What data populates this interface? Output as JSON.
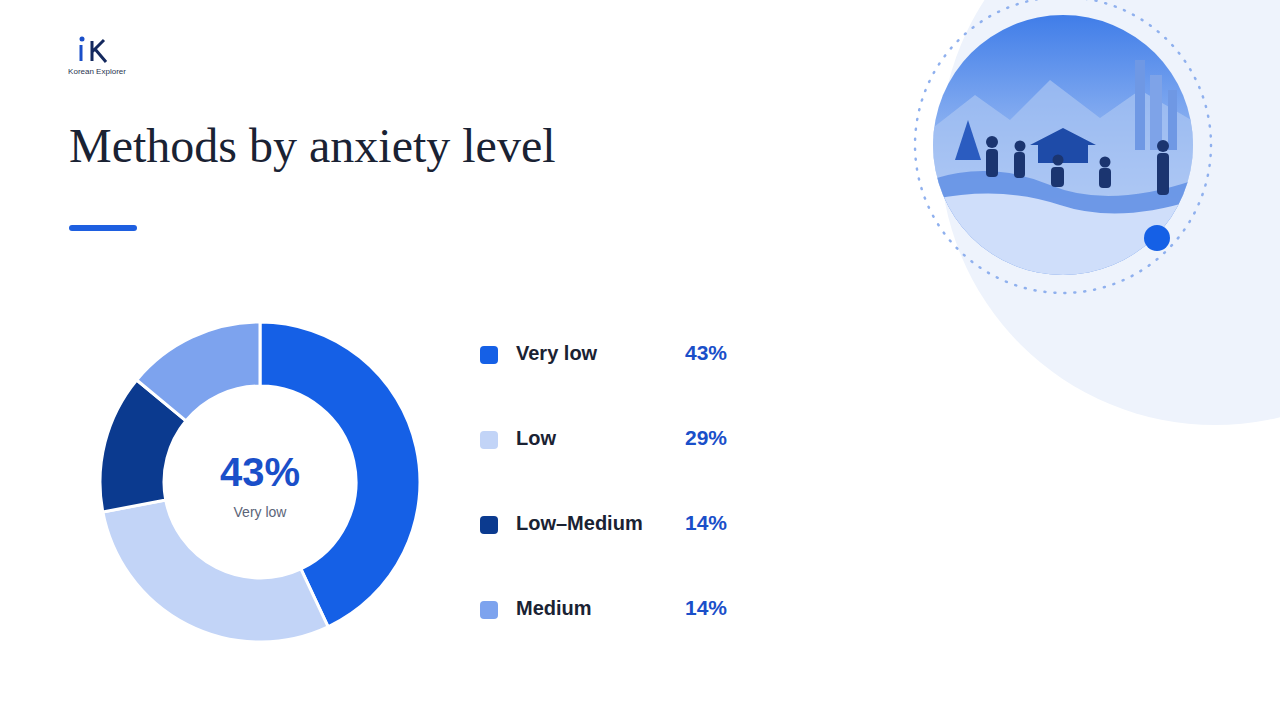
{
  "chart_data": {
    "type": "pie",
    "title": "Methods by anxiety level",
    "categories": [
      "Very low",
      "Low",
      "Low–Medium",
      "Medium"
    ],
    "values": [
      43,
      29,
      14,
      14
    ],
    "value_labels": [
      "43%",
      "29%",
      "14%",
      "14%"
    ],
    "colors": [
      "#1560e6",
      "#c2d4f7",
      "#0b3a8f",
      "#7da3ee"
    ],
    "legend": "right",
    "annotations": [
      "Korean Explorer"
    ]
  }
}
